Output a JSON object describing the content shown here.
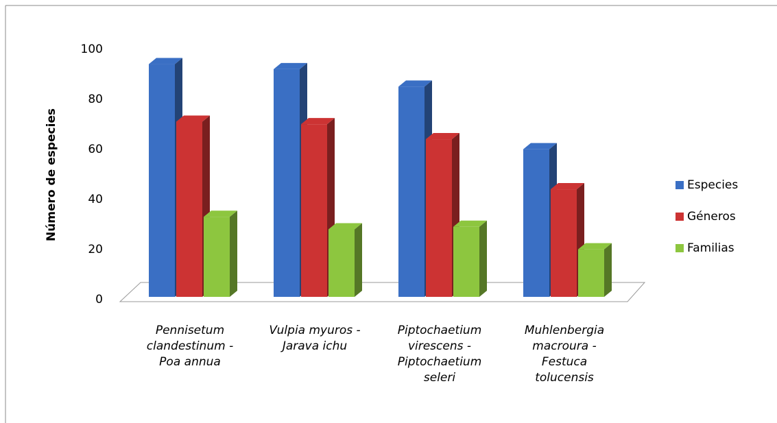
{
  "chart_data": {
    "type": "bar",
    "y_label": "Número de especies",
    "categories": [
      "Pennisetum clandestinum - Poa annua",
      "Vulpia myuros - Jarava ichu",
      "Piptochaetium virescens - Piptochaetium seleri",
      "Muhlenbergia macroura - Festuca tolucensis"
    ],
    "series": [
      {
        "name": "Especies",
        "color": "#3a6fc4",
        "values": [
          93,
          91,
          84,
          59
        ]
      },
      {
        "name": "Géneros",
        "color": "#cc3333",
        "values": [
          70,
          69,
          63,
          43
        ]
      },
      {
        "name": "Familias",
        "color": "#8dc63f",
        "values": [
          32,
          27,
          28,
          19
        ]
      }
    ],
    "ylim": [
      0,
      100
    ],
    "yticks": [
      0,
      20,
      40,
      60,
      80,
      100
    ],
    "legend": "right"
  }
}
